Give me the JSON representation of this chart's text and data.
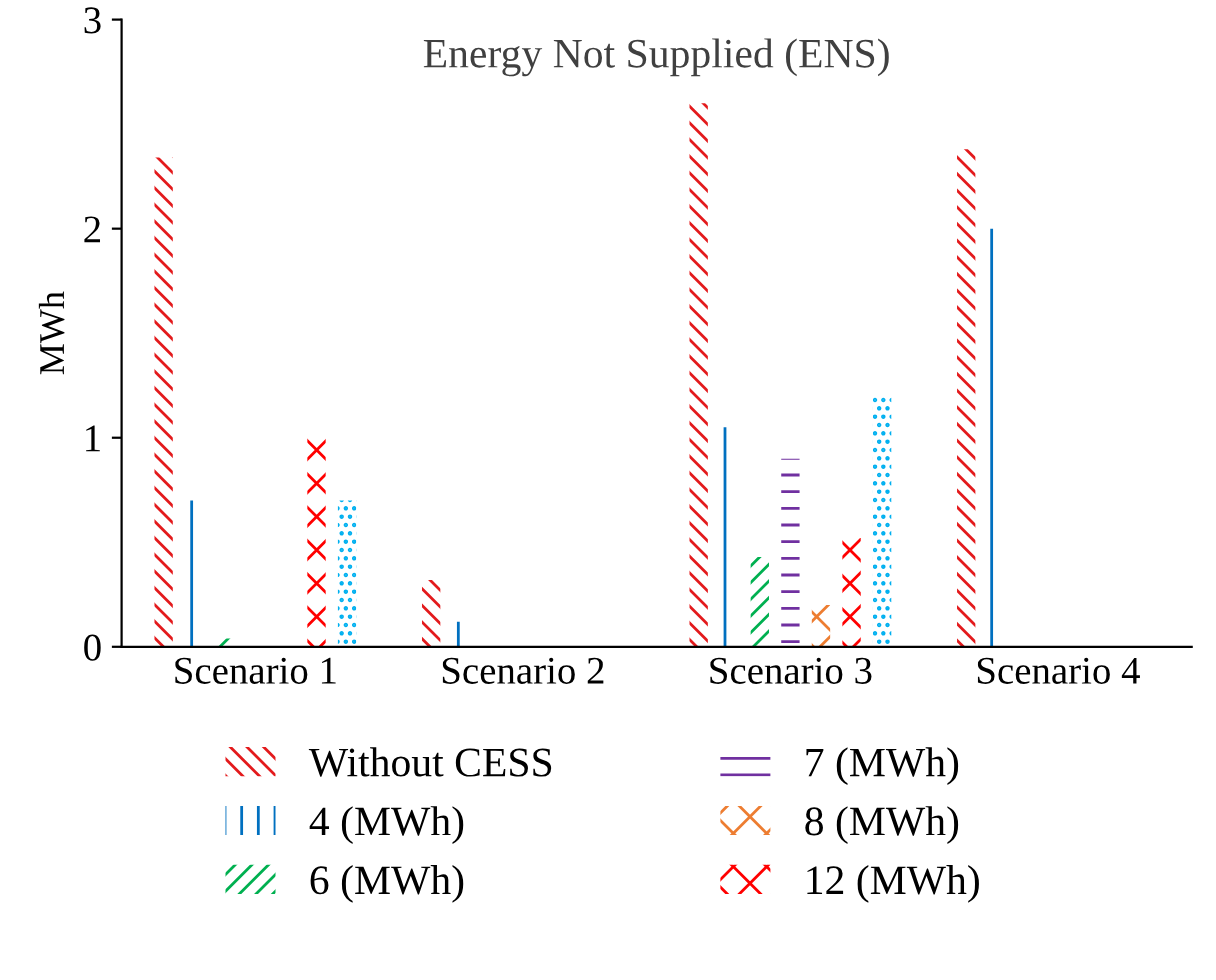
{
  "chart_data": {
    "type": "bar",
    "title": "Energy Not Supplied (ENS)",
    "ylabel": "MWh",
    "categories": [
      "Scenario 1",
      "Scenario 2",
      "Scenario 3",
      "Scenario 4"
    ],
    "series": [
      {
        "name": "Without CESS",
        "color": "#e31a1c",
        "values": [
          2.34,
          0.32,
          2.6,
          2.38
        ]
      },
      {
        "name": "4 (MWh)",
        "color": "#0070c0",
        "values": [
          0.7,
          0.12,
          1.05,
          2.0
        ]
      },
      {
        "name": "6 (MWh)",
        "color": "#00b050",
        "values": [
          0.04,
          0,
          0.43,
          0
        ]
      },
      {
        "name": "7 (MWh)",
        "color": "#7030a0",
        "values": [
          0,
          0,
          0.9,
          0
        ]
      },
      {
        "name": "8 (MWh)",
        "color": "#ed7d31",
        "values": [
          0,
          0,
          0.2,
          0
        ]
      },
      {
        "name": "12 (MWh)",
        "color": "#ff0000",
        "values": [
          1.03,
          0,
          0.52,
          0
        ]
      },
      {
        "color": "#00b0f0",
        "values": [
          0.7,
          0,
          1.2,
          0
        ]
      }
    ],
    "ylim": [
      0,
      3
    ],
    "yticks": [
      0,
      1,
      2,
      3
    ],
    "grid": false,
    "legend": "bottom"
  }
}
